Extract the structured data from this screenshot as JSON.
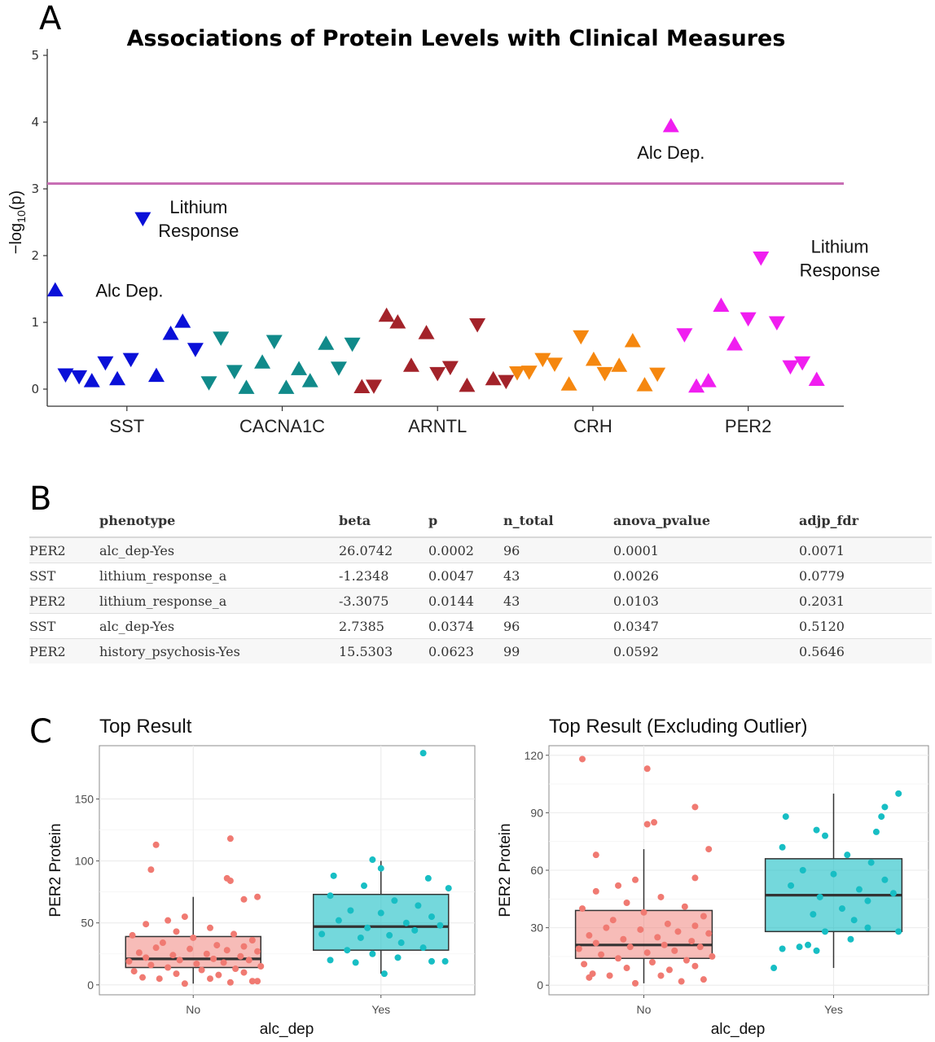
{
  "panel_labels": {
    "a": "A",
    "b": "B",
    "c": "C"
  },
  "colors": {
    "SST": "#0a10d8",
    "CACNA1C": "#108a8a",
    "ARNTL": "#a3232a",
    "CRH": "#f5870f",
    "PER2": "#f01ef0",
    "threshold": "#c86eb4",
    "no": "#f07a72",
    "yes": "#17bec4"
  },
  "chart_data": [
    {
      "type": "scatter",
      "title": "Associations of Protein Levels with Clinical Measures",
      "ylabel_prefix": "−log",
      "ylabel_sub": "10",
      "ylabel_suffix": "(p)",
      "ylim": [
        0,
        5.2
      ],
      "yticks": [
        0,
        1,
        2,
        3,
        4,
        5
      ],
      "threshold": 3.08,
      "xlim": [
        0,
        1
      ],
      "groups": [
        {
          "gene": "SST",
          "center": 0.1,
          "points": [
            [
              0.01,
              1.48,
              "up"
            ],
            [
              0.023,
              0.22,
              "down"
            ],
            [
              0.04,
              0.19,
              "down"
            ],
            [
              0.056,
              0.12,
              "up"
            ],
            [
              0.073,
              0.4,
              "down"
            ],
            [
              0.088,
              0.15,
              "up"
            ],
            [
              0.105,
              0.45,
              "down"
            ],
            [
              0.12,
              2.56,
              "down"
            ],
            [
              0.137,
              0.2,
              "up"
            ],
            [
              0.155,
              0.83,
              "up"
            ],
            [
              0.17,
              1.01,
              "up"
            ],
            [
              0.186,
              0.6,
              "down"
            ]
          ]
        },
        {
          "gene": "CACNA1C",
          "center": 0.295,
          "points": [
            [
              0.203,
              0.1,
              "down"
            ],
            [
              0.218,
              0.77,
              "down"
            ],
            [
              0.235,
              0.27,
              "down"
            ],
            [
              0.25,
              0.02,
              "up"
            ],
            [
              0.27,
              0.4,
              "up"
            ],
            [
              0.285,
              0.72,
              "down"
            ],
            [
              0.3,
              0.02,
              "up"
            ],
            [
              0.316,
              0.3,
              "up"
            ],
            [
              0.33,
              0.12,
              "up"
            ],
            [
              0.35,
              0.68,
              "up"
            ],
            [
              0.366,
              0.32,
              "down"
            ],
            [
              0.383,
              0.68,
              "down"
            ]
          ]
        },
        {
          "gene": "ARNTL",
          "center": 0.49,
          "points": [
            [
              0.395,
              0.03,
              "up"
            ],
            [
              0.41,
              0.05,
              "down"
            ],
            [
              0.426,
              1.1,
              "up"
            ],
            [
              0.44,
              1.0,
              "up"
            ],
            [
              0.457,
              0.35,
              "up"
            ],
            [
              0.476,
              0.84,
              "up"
            ],
            [
              0.49,
              0.24,
              "down"
            ],
            [
              0.506,
              0.33,
              "down"
            ],
            [
              0.527,
              0.05,
              "up"
            ],
            [
              0.54,
              0.97,
              "down"
            ],
            [
              0.56,
              0.15,
              "up"
            ],
            [
              0.576,
              0.12,
              "down"
            ]
          ]
        },
        {
          "gene": "CRH",
          "center": 0.685,
          "points": [
            [
              0.59,
              0.25,
              "down"
            ],
            [
              0.605,
              0.26,
              "down"
            ],
            [
              0.622,
              0.45,
              "down"
            ],
            [
              0.637,
              0.38,
              "down"
            ],
            [
              0.655,
              0.07,
              "up"
            ],
            [
              0.67,
              0.79,
              "down"
            ],
            [
              0.686,
              0.44,
              "up"
            ],
            [
              0.7,
              0.24,
              "down"
            ],
            [
              0.718,
              0.35,
              "up"
            ],
            [
              0.735,
              0.72,
              "up"
            ],
            [
              0.75,
              0.06,
              "up"
            ],
            [
              0.766,
              0.23,
              "down"
            ]
          ]
        },
        {
          "gene": "PER2",
          "center": 0.88,
          "points": [
            [
              0.783,
              3.94,
              "up"
            ],
            [
              0.8,
              0.82,
              "down"
            ],
            [
              0.815,
              0.04,
              "up"
            ],
            [
              0.83,
              0.12,
              "up"
            ],
            [
              0.846,
              1.25,
              "up"
            ],
            [
              0.863,
              0.67,
              "up"
            ],
            [
              0.88,
              1.06,
              "down"
            ],
            [
              0.896,
              1.97,
              "down"
            ],
            [
              0.916,
              1.0,
              "down"
            ],
            [
              0.933,
              0.34,
              "down"
            ],
            [
              0.948,
              0.4,
              "down"
            ],
            [
              0.966,
              0.14,
              "up"
            ]
          ]
        }
      ],
      "annotations": [
        {
          "lines": [
            "Alc Dep."
          ],
          "x": 0.03,
          "y": 1.48,
          "align": "start"
        },
        {
          "lines": [
            "Lithium",
            "Response"
          ],
          "x": 0.19,
          "y": 2.56,
          "align": "middle"
        },
        {
          "lines": [
            "Alc Dep."
          ],
          "x": 0.783,
          "y": 3.55,
          "align": "middle"
        },
        {
          "lines": [
            "Lithium",
            "Response"
          ],
          "x": 0.995,
          "y": 1.97,
          "align": "middle"
        }
      ]
    },
    {
      "type": "table",
      "columns": [
        "",
        "phenotype",
        "beta",
        "p",
        "n_total",
        "anova_pvalue",
        "adjp_fdr"
      ],
      "rows": [
        [
          "PER2",
          "alc_dep-Yes",
          "26.0742",
          "0.0002",
          "96",
          "0.0001",
          "0.0071"
        ],
        [
          "SST",
          "lithium_response_a",
          "-1.2348",
          "0.0047",
          "43",
          "0.0026",
          "0.0779"
        ],
        [
          "PER2",
          "lithium_response_a",
          "-3.3075",
          "0.0144",
          "43",
          "0.0103",
          "0.2031"
        ],
        [
          "SST",
          "alc_dep-Yes",
          "2.7385",
          "0.0374",
          "96",
          "0.0347",
          "0.5120"
        ],
        [
          "PER2",
          "history_psychosis-Yes",
          "15.5303",
          "0.0623",
          "99",
          "0.0592",
          "0.5646"
        ]
      ]
    },
    {
      "type": "box",
      "title": "Top Result",
      "xlabel": "alc_dep",
      "ylabel": "PER2 Protein",
      "ylim": [
        -8,
        193
      ],
      "yticks": [
        0,
        50,
        100,
        150
      ],
      "categories": [
        "No",
        "Yes"
      ],
      "boxes": [
        {
          "category": "No",
          "q1": 14,
          "median": 21,
          "q3": 39,
          "whisker_low": 1,
          "whisker_high": 71
        },
        {
          "category": "Yes",
          "q1": 28,
          "median": 47,
          "q3": 73,
          "whisker_low": 9,
          "whisker_high": 100
        }
      ],
      "points": {
        "No": [
          [
            -0.05,
            1
          ],
          [
            0.22,
            2
          ],
          [
            0.35,
            3
          ],
          [
            0.38,
            3
          ],
          [
            -0.2,
            5
          ],
          [
            0.1,
            5
          ],
          [
            -0.3,
            6
          ],
          [
            0.15,
            8
          ],
          [
            -0.1,
            9
          ],
          [
            0.3,
            10
          ],
          [
            -0.35,
            11
          ],
          [
            0.05,
            12
          ],
          [
            0.25,
            13
          ],
          [
            -0.15,
            14
          ],
          [
            0.4,
            15
          ],
          [
            -0.25,
            16
          ],
          [
            0.02,
            17
          ],
          [
            0.18,
            18
          ],
          [
            -0.38,
            19
          ],
          [
            0.33,
            20
          ],
          [
            -0.08,
            20
          ],
          [
            0.12,
            21
          ],
          [
            -0.28,
            22
          ],
          [
            0.28,
            23
          ],
          [
            -0.12,
            24
          ],
          [
            0.08,
            25
          ],
          [
            -0.32,
            26
          ],
          [
            0.38,
            27
          ],
          [
            0.2,
            28
          ],
          [
            -0.02,
            29
          ],
          [
            -0.22,
            30
          ],
          [
            0.3,
            31
          ],
          [
            0.14,
            32
          ],
          [
            -0.18,
            34
          ],
          [
            0.35,
            36
          ],
          [
            0.0,
            38
          ],
          [
            -0.36,
            40
          ],
          [
            0.24,
            41
          ],
          [
            -0.1,
            43
          ],
          [
            0.1,
            46
          ],
          [
            -0.28,
            49
          ],
          [
            -0.15,
            52
          ],
          [
            -0.05,
            55
          ],
          [
            0.3,
            69
          ],
          [
            0.38,
            71
          ],
          [
            0.22,
            84
          ],
          [
            0.2,
            86
          ],
          [
            -0.25,
            93
          ],
          [
            -0.22,
            113
          ],
          [
            0.22,
            118
          ]
        ],
        "Yes": [
          [
            0.02,
            9
          ],
          [
            -0.15,
            18
          ],
          [
            -0.3,
            20
          ],
          [
            0.3,
            19
          ],
          [
            0.38,
            19
          ],
          [
            0.1,
            22
          ],
          [
            -0.05,
            25
          ],
          [
            -0.2,
            28
          ],
          [
            0.25,
            30
          ],
          [
            0.12,
            34
          ],
          [
            -0.12,
            38
          ],
          [
            0.05,
            40
          ],
          [
            -0.35,
            41
          ],
          [
            0.2,
            44
          ],
          [
            -0.08,
            46
          ],
          [
            0.35,
            48
          ],
          [
            0.15,
            50
          ],
          [
            -0.25,
            52
          ],
          [
            0.3,
            55
          ],
          [
            0.0,
            58
          ],
          [
            -0.18,
            60
          ],
          [
            0.22,
            64
          ],
          [
            0.08,
            68
          ],
          [
            -0.3,
            72
          ],
          [
            0.4,
            78
          ],
          [
            -0.1,
            80
          ],
          [
            0.28,
            86
          ],
          [
            -0.28,
            88
          ],
          [
            0.0,
            94
          ],
          [
            -0.05,
            101
          ],
          [
            0.25,
            187
          ]
        ]
      }
    },
    {
      "type": "box",
      "title": "Top Result (Excluding Outlier)",
      "xlabel": "alc_dep",
      "ylabel": "PER2 Protein",
      "ylim": [
        -5,
        125
      ],
      "yticks": [
        0,
        30,
        60,
        90,
        120
      ],
      "categories": [
        "No",
        "Yes"
      ],
      "boxes": [
        {
          "category": "No",
          "q1": 14,
          "median": 21,
          "q3": 39,
          "whisker_low": 1,
          "whisker_high": 71
        },
        {
          "category": "Yes",
          "q1": 28,
          "median": 47,
          "q3": 66,
          "whisker_low": 9,
          "whisker_high": 100
        }
      ],
      "points": {
        "No": [
          [
            -0.05,
            1
          ],
          [
            0.22,
            2
          ],
          [
            0.35,
            3
          ],
          [
            -0.32,
            4
          ],
          [
            -0.2,
            5
          ],
          [
            0.1,
            5
          ],
          [
            -0.3,
            6
          ],
          [
            0.15,
            8
          ],
          [
            -0.1,
            9
          ],
          [
            0.3,
            10
          ],
          [
            -0.35,
            11
          ],
          [
            0.05,
            12
          ],
          [
            0.25,
            13
          ],
          [
            -0.15,
            14
          ],
          [
            0.4,
            15
          ],
          [
            -0.25,
            16
          ],
          [
            0.02,
            17
          ],
          [
            0.18,
            18
          ],
          [
            -0.38,
            19
          ],
          [
            0.33,
            20
          ],
          [
            -0.08,
            20
          ],
          [
            0.12,
            21
          ],
          [
            -0.28,
            22
          ],
          [
            0.28,
            23
          ],
          [
            -0.12,
            24
          ],
          [
            0.08,
            25
          ],
          [
            -0.32,
            26
          ],
          [
            0.38,
            27
          ],
          [
            0.2,
            28
          ],
          [
            -0.02,
            29
          ],
          [
            -0.22,
            30
          ],
          [
            0.3,
            31
          ],
          [
            0.14,
            32
          ],
          [
            -0.18,
            34
          ],
          [
            0.35,
            36
          ],
          [
            0.0,
            38
          ],
          [
            -0.36,
            40
          ],
          [
            0.24,
            41
          ],
          [
            -0.1,
            43
          ],
          [
            0.1,
            46
          ],
          [
            -0.28,
            49
          ],
          [
            -0.15,
            52
          ],
          [
            -0.05,
            55
          ],
          [
            0.3,
            56
          ],
          [
            -0.28,
            68
          ],
          [
            0.38,
            71
          ],
          [
            0.02,
            84
          ],
          [
            0.06,
            85
          ],
          [
            0.3,
            93
          ],
          [
            -0.36,
            118
          ],
          [
            0.02,
            113
          ]
        ],
        "Yes": [
          [
            -0.35,
            9
          ],
          [
            -0.3,
            19
          ],
          [
            -0.2,
            20
          ],
          [
            -0.1,
            18
          ],
          [
            -0.15,
            21
          ],
          [
            0.1,
            24
          ],
          [
            0.38,
            28
          ],
          [
            -0.05,
            28
          ],
          [
            0.2,
            30
          ],
          [
            0.12,
            34
          ],
          [
            -0.12,
            37
          ],
          [
            0.05,
            40
          ],
          [
            0.2,
            44
          ],
          [
            -0.08,
            46
          ],
          [
            0.35,
            48
          ],
          [
            0.15,
            50
          ],
          [
            -0.25,
            52
          ],
          [
            0.3,
            55
          ],
          [
            0.0,
            58
          ],
          [
            -0.18,
            60
          ],
          [
            0.22,
            64
          ],
          [
            0.08,
            68
          ],
          [
            -0.3,
            72
          ],
          [
            -0.05,
            78
          ],
          [
            0.25,
            80
          ],
          [
            -0.1,
            81
          ],
          [
            0.28,
            88
          ],
          [
            -0.28,
            88
          ],
          [
            0.3,
            93
          ],
          [
            0.38,
            100
          ]
        ]
      }
    }
  ]
}
